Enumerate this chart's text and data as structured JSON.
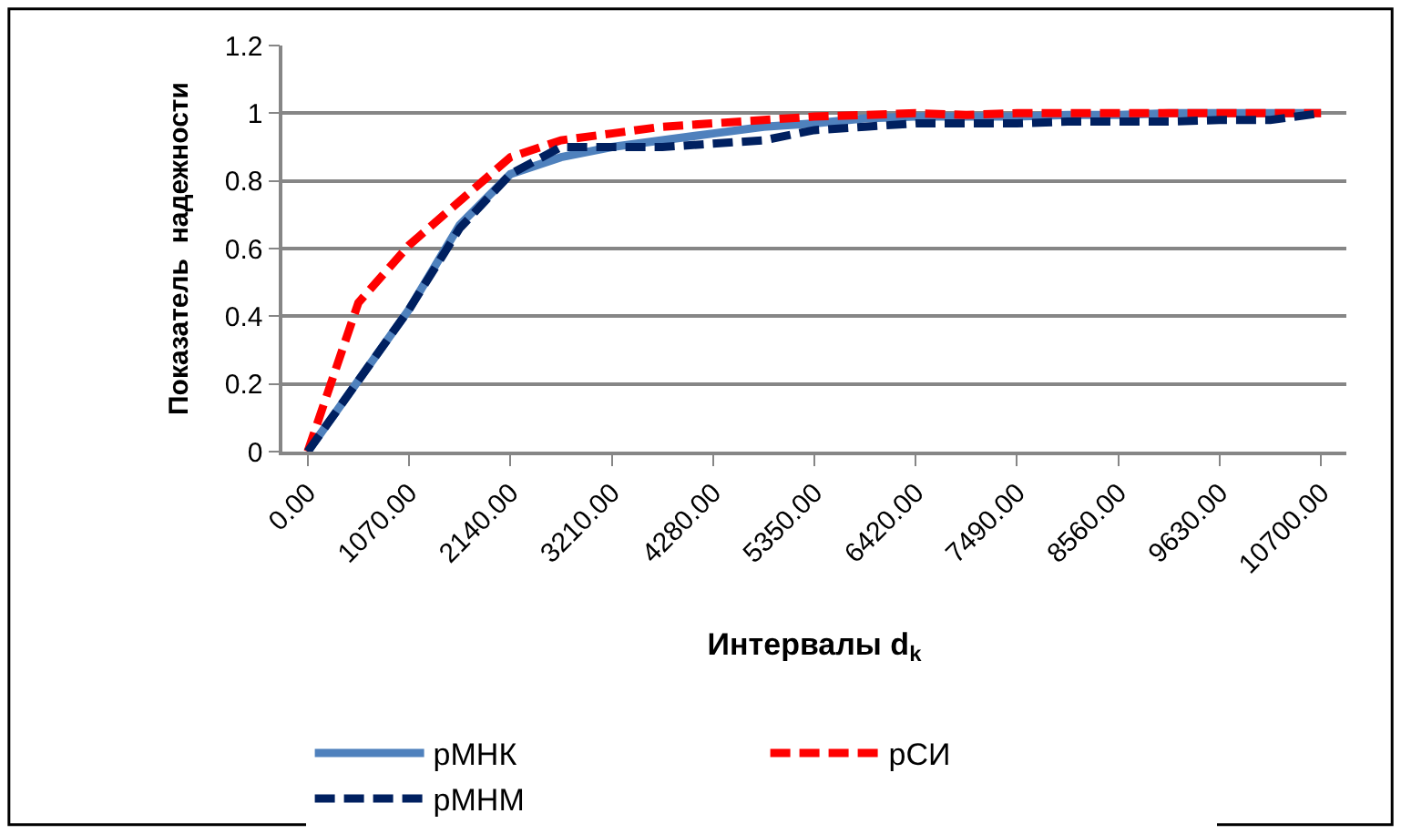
{
  "chart_data": {
    "type": "line",
    "xlabel": "Интервалы d$_{k}$",
    "ylabel": "Показатель  надежности",
    "x": [
      0,
      535,
      1070,
      1605,
      2140,
      2675,
      3210,
      3745,
      4280,
      4815,
      5350,
      5885,
      6420,
      6955,
      7490,
      8025,
      8560,
      9095,
      9630,
      10165,
      10700
    ],
    "series": [
      {
        "name": "pМНК",
        "color": "#4f81bd",
        "line_style": "solid",
        "values": [
          0,
          0.21,
          0.42,
          0.67,
          0.82,
          0.87,
          0.9,
          0.92,
          0.94,
          0.96,
          0.97,
          0.985,
          0.99,
          0.99,
          0.99,
          0.995,
          0.995,
          1,
          1,
          1,
          1
        ]
      },
      {
        "name": "pСИ",
        "color": "#ff0000",
        "line_style": "dashed",
        "values": [
          0,
          0.44,
          0.61,
          0.74,
          0.87,
          0.92,
          0.94,
          0.96,
          0.97,
          0.98,
          0.99,
          0.995,
          1,
          0.995,
          1,
          1,
          1,
          1,
          1,
          1,
          1
        ]
      },
      {
        "name": "pМНМ",
        "color": "#002060",
        "line_style": "dashed",
        "values": [
          0,
          0.21,
          0.42,
          0.66,
          0.82,
          0.9,
          0.9,
          0.9,
          0.91,
          0.92,
          0.95,
          0.96,
          0.97,
          0.97,
          0.97,
          0.975,
          0.975,
          0.975,
          0.98,
          0.98,
          1
        ]
      }
    ],
    "xlim": [
      -267.5,
      10967.5
    ],
    "xticks": [
      {
        "value": 0,
        "label": "0.00"
      },
      {
        "value": 1070,
        "label": "1070.00"
      },
      {
        "value": 2140,
        "label": "2140.00"
      },
      {
        "value": 3210,
        "label": "3210.00"
      },
      {
        "value": 4280,
        "label": "4280.00"
      },
      {
        "value": 5350,
        "label": "5350.00"
      },
      {
        "value": 6420,
        "label": "6420.00"
      },
      {
        "value": 7490,
        "label": "7490.00"
      },
      {
        "value": 8560,
        "label": "8560.00"
      },
      {
        "value": 9630,
        "label": "9630.00"
      },
      {
        "value": 10700,
        "label": "10700.00"
      }
    ],
    "ylim": [
      0,
      1.2
    ],
    "yticks": [
      0,
      0.2,
      0.4,
      0.6,
      0.8,
      1,
      1.2
    ],
    "grid": "y",
    "legend": "bottom",
    "marker": "none"
  }
}
